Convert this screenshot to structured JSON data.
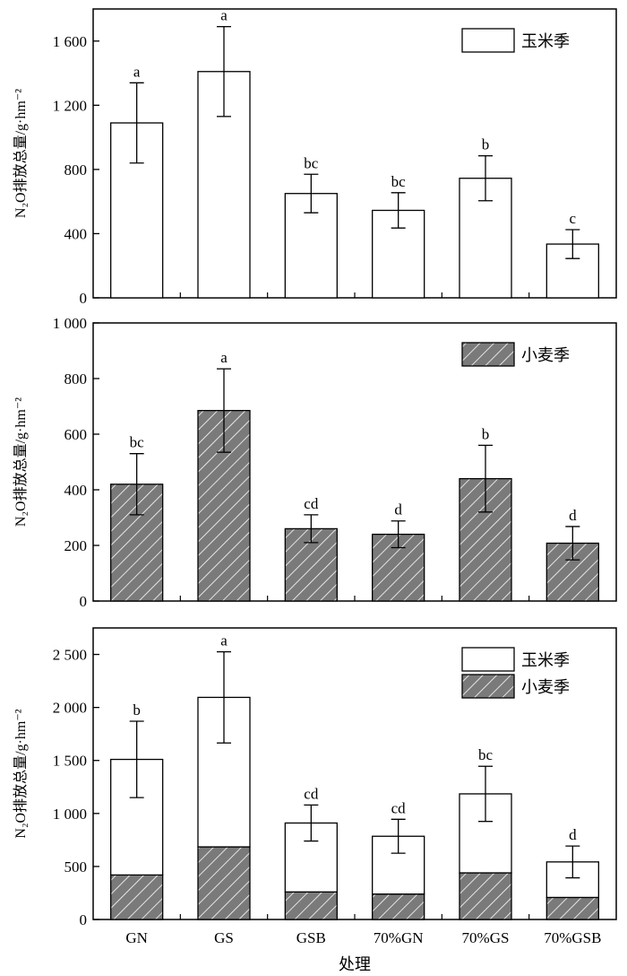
{
  "chart_data": [
    {
      "type": "bar",
      "categories": [
        "GN",
        "GS",
        "GSB",
        "70%GN",
        "70%GS",
        "70%GSB"
      ],
      "ylabel": "N₂O排放总量/g·hm⁻²",
      "ylim": [
        0,
        1800
      ],
      "yticks": [
        0,
        400,
        800,
        1200,
        1600
      ],
      "ytick_labels": [
        "0",
        "400",
        "800",
        "1 200",
        "1 600"
      ],
      "legend": "top-right",
      "series": [
        {
          "name": "玉米季",
          "pattern": "white",
          "values": [
            1090,
            1410,
            650,
            545,
            745,
            335
          ],
          "errors": [
            250,
            280,
            120,
            110,
            140,
            90
          ],
          "significance": [
            "a",
            "a",
            "bc",
            "bc",
            "b",
            "c"
          ]
        }
      ]
    },
    {
      "type": "bar",
      "categories": [
        "GN",
        "GS",
        "GSB",
        "70%GN",
        "70%GS",
        "70%GSB"
      ],
      "ylabel": "N₂O排放总量/g·hm⁻²",
      "ylim": [
        0,
        1000
      ],
      "yticks": [
        0,
        200,
        400,
        600,
        800,
        1000
      ],
      "ytick_labels": [
        "0",
        "200",
        "400",
        "600",
        "800",
        "1 000"
      ],
      "legend": "top-right",
      "series": [
        {
          "name": "小麦季",
          "pattern": "hatched",
          "values": [
            420,
            685,
            260,
            240,
            440,
            208
          ],
          "errors": [
            110,
            150,
            50,
            48,
            120,
            60
          ],
          "significance": [
            "bc",
            "a",
            "cd",
            "d",
            "b",
            "d"
          ]
        }
      ]
    },
    {
      "type": "bar",
      "stacked": true,
      "categories": [
        "GN",
        "GS",
        "GSB",
        "70%GN",
        "70%GS",
        "70%GSB"
      ],
      "ylabel": "N₂O排放总量/g·hm⁻²",
      "xlabel": "处理",
      "ylim": [
        0,
        2750
      ],
      "yticks": [
        0,
        500,
        1000,
        1500,
        2000,
        2500
      ],
      "ytick_labels": [
        "0",
        "500",
        "1 000",
        "1 500",
        "2 000",
        "2 500"
      ],
      "legend": "top-right",
      "series": [
        {
          "name": "小麦季",
          "pattern": "hatched",
          "values": [
            420,
            685,
            260,
            240,
            440,
            208
          ]
        },
        {
          "name": "玉米季",
          "pattern": "white",
          "values": [
            1090,
            1410,
            650,
            545,
            745,
            335
          ]
        }
      ],
      "totals": [
        1510,
        2095,
        910,
        785,
        1185,
        543
      ],
      "errors": [
        360,
        430,
        170,
        160,
        260,
        150
      ],
      "significance": [
        "b",
        "a",
        "cd",
        "cd",
        "bc",
        "d"
      ]
    }
  ],
  "colors": {
    "hatch_fill": "#7a7a7a",
    "hatch_line": "#ffffff",
    "bar_stroke": "#000000",
    "bar_white": "#ffffff"
  }
}
